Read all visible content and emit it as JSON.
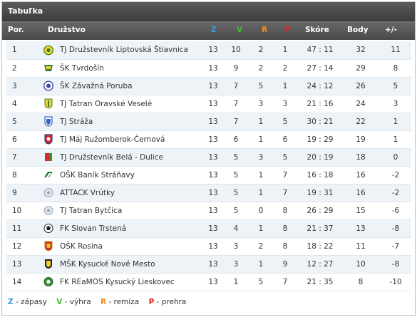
{
  "widget": {
    "title": "Tabuľka"
  },
  "header": {
    "pos": "Por.",
    "team": "Družstvo",
    "z": "Z",
    "v": "V",
    "r": "R",
    "p": "P",
    "score": "Skóre",
    "points": "Body",
    "diff": "+/-"
  },
  "colors": {
    "z": "#2f9fe0",
    "v": "#3fbf2f",
    "r": "#f08c1e",
    "p": "#e02020"
  },
  "rows": [
    {
      "pos": "1",
      "team": "TJ Družstevník Liptovská Štiavnica",
      "crest": "yellow-green",
      "z": "13",
      "v": "10",
      "r": "2",
      "p": "1",
      "score": "47 : 11",
      "points": "32",
      "diff": "11"
    },
    {
      "pos": "2",
      "team": "ŠK Tvrdošín",
      "crest": "green-yellow",
      "z": "13",
      "v": "9",
      "r": "2",
      "p": "2",
      "score": "27 : 14",
      "points": "29",
      "diff": "8"
    },
    {
      "pos": "3",
      "team": "ŠK Závažná Poruba",
      "crest": "blue-round",
      "z": "13",
      "v": "7",
      "r": "5",
      "p": "1",
      "score": "24 : 12",
      "points": "26",
      "diff": "5"
    },
    {
      "pos": "4",
      "team": "TJ Tatran Oravské Veselé",
      "crest": "yellow-green-shield",
      "z": "13",
      "v": "7",
      "r": "3",
      "p": "3",
      "score": "21 : 16",
      "points": "24",
      "diff": "3"
    },
    {
      "pos": "5",
      "team": "TJ Stráža",
      "crest": "blue-shield",
      "z": "13",
      "v": "7",
      "r": "1",
      "p": "5",
      "score": "30 : 21",
      "points": "22",
      "diff": "1"
    },
    {
      "pos": "6",
      "team": "TJ Máj Ružomberok-Černová",
      "crest": "red-shield",
      "z": "13",
      "v": "6",
      "r": "1",
      "p": "6",
      "score": "19 : 29",
      "points": "19",
      "diff": "1"
    },
    {
      "pos": "7",
      "team": "TJ Družstevník Belá - Dulice",
      "crest": "red-green",
      "z": "13",
      "v": "5",
      "r": "3",
      "p": "5",
      "score": "20 : 19",
      "points": "18",
      "diff": "0"
    },
    {
      "pos": "8",
      "team": "OŠK Baník Stráňavy",
      "crest": "green-white",
      "z": "13",
      "v": "5",
      "r": "1",
      "p": "7",
      "score": "16 : 18",
      "points": "16",
      "diff": "-2"
    },
    {
      "pos": "9",
      "team": "ATTACK Vrútky",
      "crest": "gray-ball",
      "z": "13",
      "v": "5",
      "r": "1",
      "p": "7",
      "score": "19 : 31",
      "points": "16",
      "diff": "-2"
    },
    {
      "pos": "10",
      "team": "TJ Tatran Bytčica",
      "crest": "gray-ball",
      "z": "13",
      "v": "5",
      "r": "0",
      "p": "8",
      "score": "26 : 29",
      "points": "15",
      "diff": "-6"
    },
    {
      "pos": "11",
      "team": "FK Slovan Trstená",
      "crest": "black-white-ball",
      "z": "13",
      "v": "4",
      "r": "1",
      "p": "8",
      "score": "21 : 37",
      "points": "13",
      "diff": "-8"
    },
    {
      "pos": "12",
      "team": "OŠK Rosina",
      "crest": "red-yellow-shield",
      "z": "13",
      "v": "3",
      "r": "2",
      "p": "8",
      "score": "18 : 22",
      "points": "11",
      "diff": "-7"
    },
    {
      "pos": "13",
      "team": "MŠK Kysucké Nové Mesto",
      "crest": "black-yellow",
      "z": "13",
      "v": "3",
      "r": "1",
      "p": "9",
      "score": "12 : 27",
      "points": "10",
      "diff": "-8"
    },
    {
      "pos": "14",
      "team": "FK REaMOS Kysucký Lieskovec",
      "crest": "green-ball",
      "z": "13",
      "v": "1",
      "r": "5",
      "p": "7",
      "score": "21 : 35",
      "points": "8",
      "diff": "-10"
    }
  ],
  "legend": {
    "z_key": "Z",
    "z_text": " - zápasy",
    "v_key": "V",
    "v_text": " - výhra",
    "r_key": "R",
    "r_text": " - remíza",
    "p_key": "P",
    "p_text": " - prehra"
  }
}
